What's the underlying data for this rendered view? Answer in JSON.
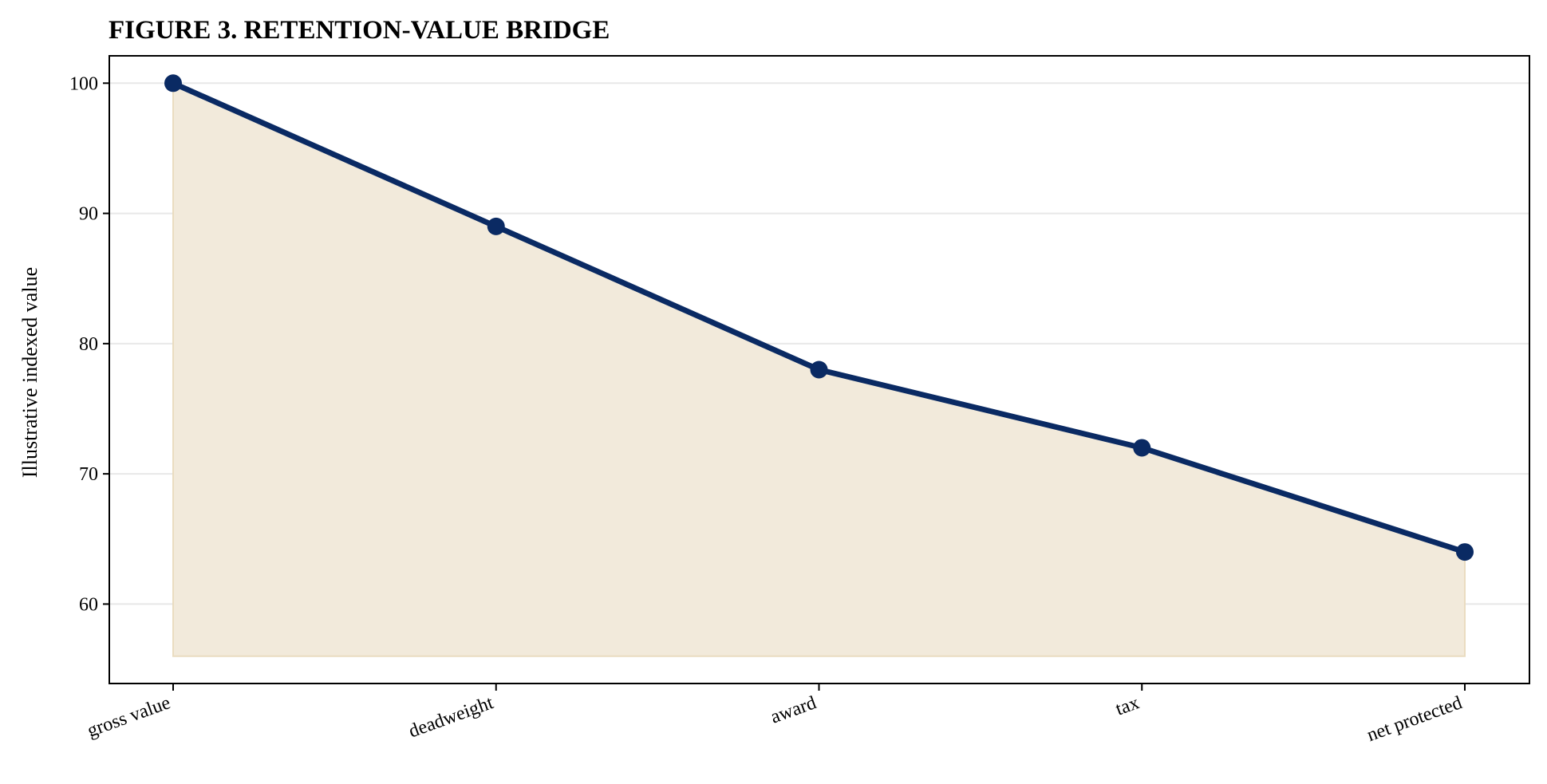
{
  "chart_data": {
    "type": "line",
    "title": "FIGURE 3. RETENTION-VALUE BRIDGE",
    "xlabel": "",
    "ylabel": "Illustrative indexed value",
    "categories": [
      "gross value",
      "deadweight",
      "award",
      "tax",
      "net protected"
    ],
    "series": [
      {
        "values": [
          100,
          89,
          78,
          72,
          64
        ]
      }
    ],
    "fill_baseline": 56,
    "ylim": [
      53.9,
      102.1
    ],
    "yticks": [
      60,
      70,
      80,
      90,
      100
    ],
    "grid": "horizontal",
    "legend": "none",
    "colors": {
      "line": "#0a2a63",
      "fill": "#f2eadb",
      "fill_edge": "#eadcc0",
      "grid": "#e8e8e8",
      "axis": "#000000"
    }
  }
}
